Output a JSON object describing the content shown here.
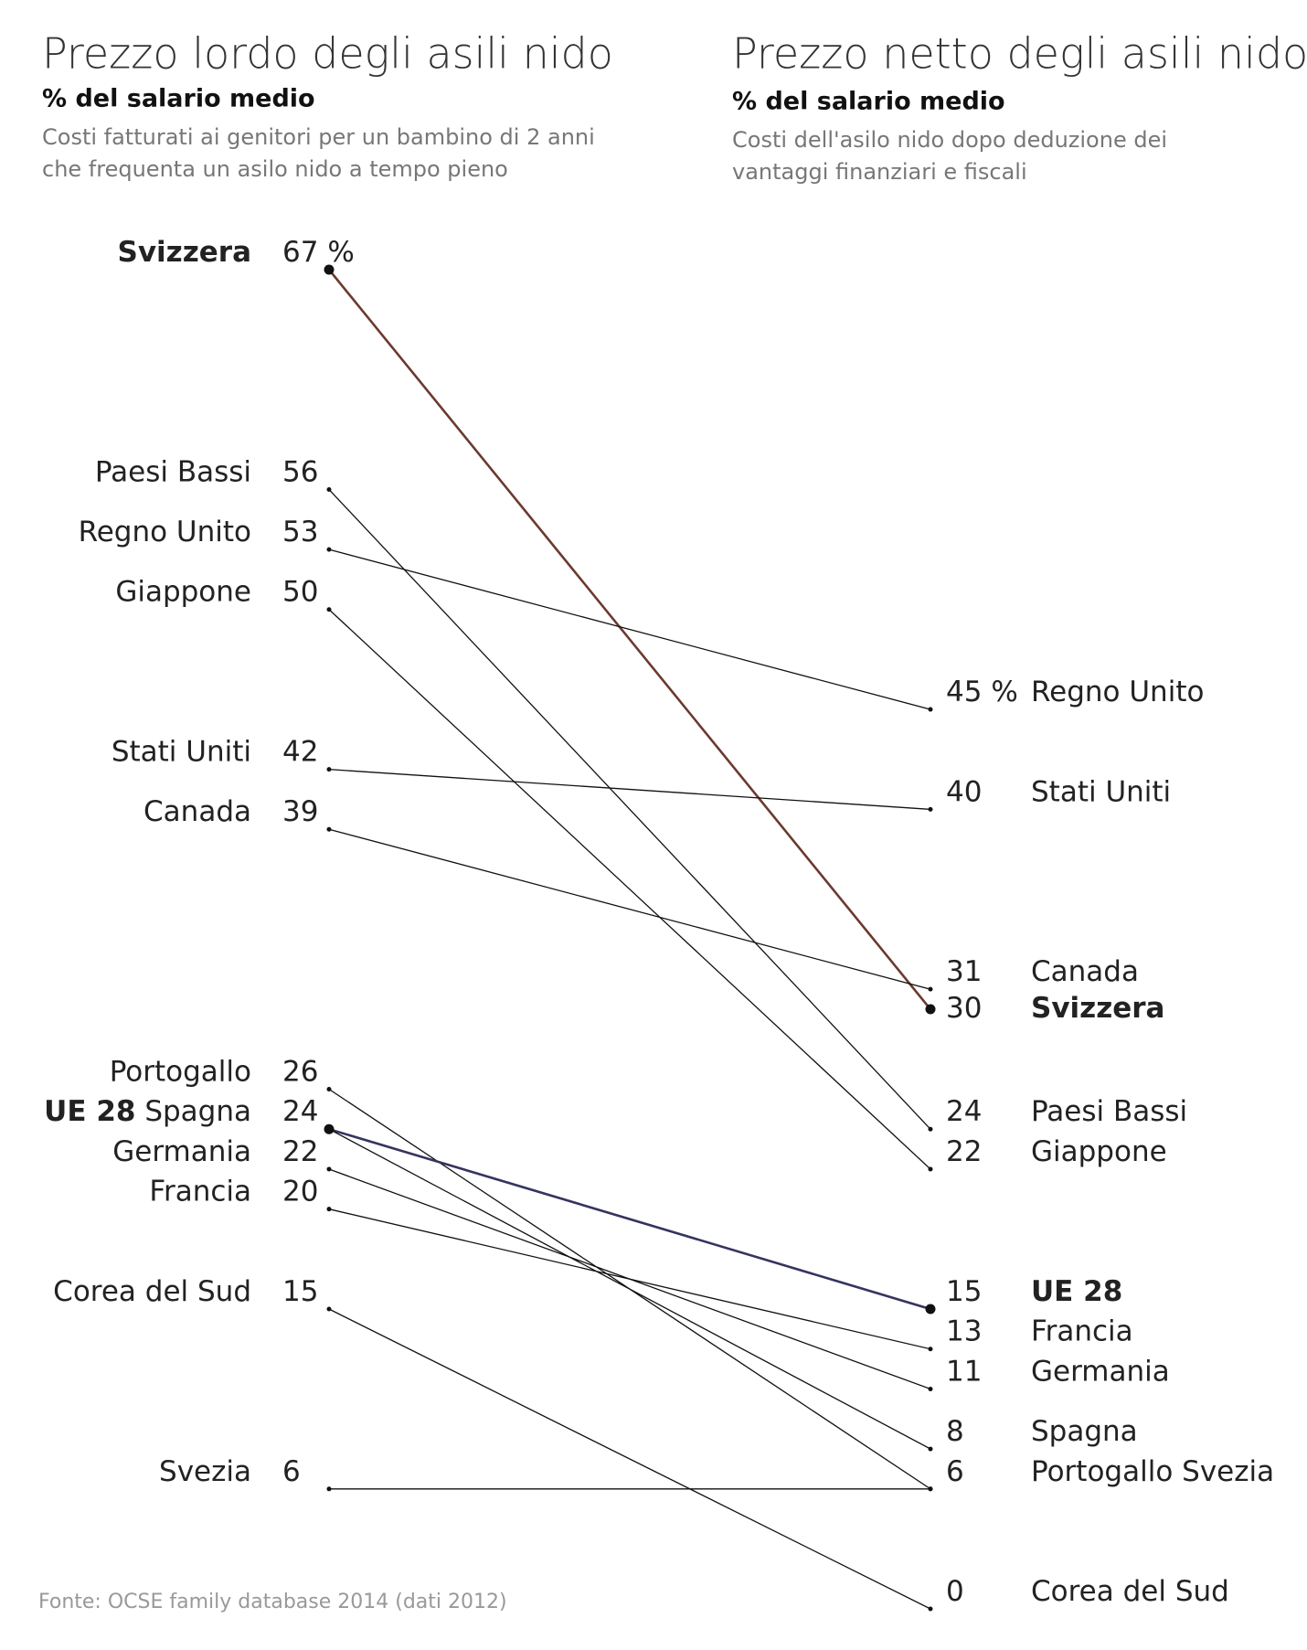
{
  "chart_data": {
    "type": "slope",
    "left": {
      "title": "Prezzo lordo degli asili nido",
      "subtitle": "% del salario medio",
      "note": [
        "Costi fatturati ai genitori per un bambino di 2 anni",
        "che frequenta un asilo nido a tempo pieno"
      ]
    },
    "right": {
      "title": "Prezzo netto degli asili nido",
      "subtitle": "% del salario medio",
      "note": [
        "Costi dell'asilo nido dopo deduzione dei",
        "vantaggi finanziari e fiscali"
      ]
    },
    "unit": "%",
    "source": "Fonte: OCSE family database 2014 (dati 2012)",
    "ylim": [
      0,
      67
    ],
    "series": [
      {
        "name": "Svizzera",
        "values": [
          67,
          30
        ],
        "color": "#6b3a2e",
        "emphasis": true
      },
      {
        "name": "Paesi Bassi",
        "values": [
          56,
          24
        ],
        "color": "#111111"
      },
      {
        "name": "Regno Unito",
        "values": [
          53,
          45
        ],
        "color": "#111111"
      },
      {
        "name": "Giappone",
        "values": [
          50,
          22
        ],
        "color": "#111111"
      },
      {
        "name": "Stati Uniti",
        "values": [
          42,
          40
        ],
        "color": "#111111"
      },
      {
        "name": "Canada",
        "values": [
          39,
          31
        ],
        "color": "#111111"
      },
      {
        "name": "Portogallo",
        "values": [
          26,
          6
        ],
        "color": "#111111"
      },
      {
        "name": "UE 28",
        "values": [
          24,
          15
        ],
        "color": "#35345f",
        "emphasis": true
      },
      {
        "name": "Spagna",
        "values": [
          24,
          8
        ],
        "color": "#111111"
      },
      {
        "name": "Germania",
        "values": [
          22,
          11
        ],
        "color": "#111111"
      },
      {
        "name": "Francia",
        "values": [
          20,
          13
        ],
        "color": "#111111"
      },
      {
        "name": "Corea del Sud",
        "values": [
          15,
          0
        ],
        "color": "#111111"
      },
      {
        "name": "Svezia",
        "values": [
          6,
          6
        ],
        "color": "#111111"
      }
    ]
  }
}
